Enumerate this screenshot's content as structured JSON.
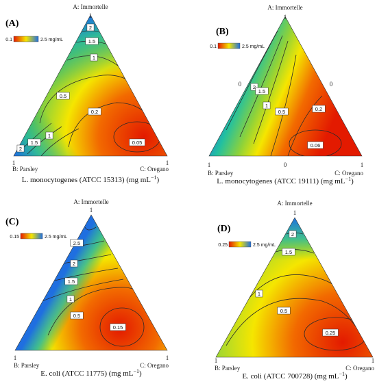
{
  "chart_data": [
    {
      "type": "ternary-contour",
      "panel": "(A)",
      "vertices": {
        "top": "A: Immortelle",
        "left": "B: Parsley",
        "right": "C: Oregano"
      },
      "vertex_values": {
        "top": "1",
        "left": "1",
        "right": "1"
      },
      "extra_ticks": [],
      "xlabel": "L. monocytogenes (ATCC 15313) (mg mL",
      "xlabel_sup": "−1",
      "xlabel_end": ")",
      "legend": {
        "min": "0.1",
        "max": "2.5 mg/mL"
      },
      "contour_labels": [
        "2",
        "1.5",
        "1",
        "0.5",
        "0.2",
        "0.05",
        "2",
        "1.5",
        "1"
      ],
      "colors": {
        "low": "#e31a00",
        "mid": "#f5e600",
        "high": "#1f6fe0"
      }
    },
    {
      "type": "ternary-contour",
      "panel": "(B)",
      "vertices": {
        "top": "A: Immortelle",
        "left": "B: Parsley",
        "right": "C: Oregano"
      },
      "vertex_values": {
        "top": "1",
        "left": "1",
        "right": "1"
      },
      "extra_ticks": [
        "0",
        "0",
        "0"
      ],
      "xlabel": "L. monocytogenes (ATCC 19111) (mg mL",
      "xlabel_sup": "−1",
      "xlabel_end": ")",
      "legend": {
        "min": "0.1",
        "max": "2.5 mg/mL"
      },
      "contour_labels": [
        "2",
        "1.5",
        "1",
        "0.5",
        "0.2",
        "0.06"
      ],
      "colors": {
        "low": "#e31a00",
        "mid": "#f5e600",
        "high": "#1f6fe0"
      }
    },
    {
      "type": "ternary-contour",
      "panel": "(C)",
      "vertices": {
        "top": "A: Immortelle",
        "left": "B: Parsley",
        "right": "C: Oregano"
      },
      "vertex_values": {
        "top": "1",
        "left": "1",
        "right": "1"
      },
      "extra_ticks": [],
      "xlabel": "E. coli (ATCC 11775) (mg mL",
      "xlabel_sup": "−1",
      "xlabel_end": ")",
      "legend": {
        "min": "0.15",
        "max": "2.5 mg/mL"
      },
      "contour_labels": [
        "2.5",
        "2",
        "1.5",
        "1",
        "0.5",
        "0.15"
      ],
      "colors": {
        "low": "#e31a00",
        "mid": "#f5e600",
        "high": "#1f6fe0"
      }
    },
    {
      "type": "ternary-contour",
      "panel": "(D)",
      "vertices": {
        "top": "A: Immortelle",
        "left": "B: Parsley",
        "right": "C: Oregano"
      },
      "vertex_values": {
        "top": "1",
        "left": "1",
        "right": "1"
      },
      "extra_ticks": [],
      "xlabel": "E. coli (ATCC 700728) (mg mL",
      "xlabel_sup": "−1",
      "xlabel_end": ")",
      "legend": {
        "min": "0.25",
        "max": "2.5 mg/mL"
      },
      "contour_labels": [
        "2",
        "1.5",
        "1",
        "0.5",
        "0.25"
      ],
      "colors": {
        "low": "#e31a00",
        "mid": "#f5e600",
        "high": "#1f6fe0"
      }
    }
  ]
}
